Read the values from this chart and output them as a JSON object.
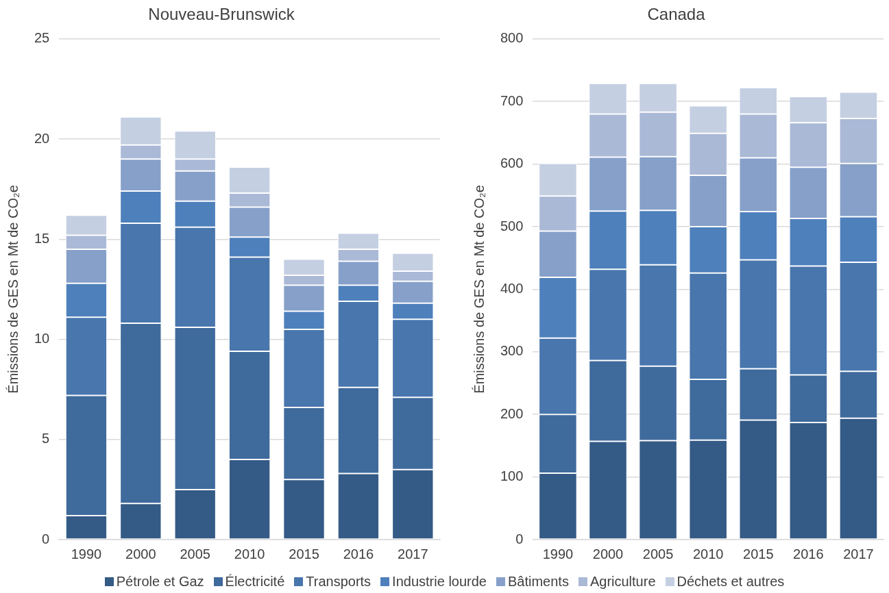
{
  "chart_data": [
    {
      "type": "bar",
      "title": "Nouveau-Brunswick",
      "ylabel": "Émissions de GES en Mt de CO₂e",
      "categories": [
        "1990",
        "2000",
        "2005",
        "2010",
        "2015",
        "2016",
        "2017"
      ],
      "stacked": true,
      "ylim": [
        0,
        25
      ],
      "yticks": [
        0,
        5,
        10,
        15,
        20,
        25
      ],
      "grid": "y",
      "series": [
        {
          "color": "#345a86",
          "values": [
            1.2,
            1.8,
            2.5,
            4.0,
            3.0,
            3.3,
            3.5
          ]
        },
        {
          "color": "#3f6a9c",
          "values": [
            6.0,
            9.0,
            8.1,
            5.4,
            3.6,
            4.3,
            3.6
          ]
        },
        {
          "color": "#4876ad",
          "values": [
            3.9,
            5.0,
            5.0,
            4.7,
            3.9,
            4.3,
            3.9
          ]
        },
        {
          "color": "#4e80bb",
          "values": [
            1.7,
            1.6,
            1.3,
            1.0,
            0.9,
            0.8,
            0.8
          ]
        },
        {
          "color": "#86a0c9",
          "values": [
            1.7,
            1.6,
            1.5,
            1.5,
            1.3,
            1.2,
            1.1
          ]
        },
        {
          "color": "#aab9d6",
          "values": [
            0.7,
            0.7,
            0.6,
            0.7,
            0.5,
            0.6,
            0.5
          ]
        },
        {
          "color": "#c4cfe2",
          "values": [
            1.0,
            1.4,
            1.4,
            1.3,
            0.8,
            0.8,
            0.9
          ]
        }
      ]
    },
    {
      "type": "bar",
      "title": "Canada",
      "ylabel": "Émissions de GES en Mt de CO₂e",
      "categories": [
        "1990",
        "2000",
        "2005",
        "2010",
        "2015",
        "2016",
        "2017"
      ],
      "stacked": true,
      "ylim": [
        0,
        800
      ],
      "yticks": [
        0,
        100,
        200,
        300,
        400,
        500,
        600,
        700,
        800
      ],
      "grid": "y",
      "legend": "bottom",
      "series": [
        {
          "name": "Pétrole et Gaz",
          "color": "#345a86",
          "values": [
            106,
            157,
            158,
            159,
            191,
            187,
            194
          ]
        },
        {
          "name": "Électricité",
          "color": "#3f6a9c",
          "values": [
            94,
            129,
            119,
            97,
            82,
            76,
            75
          ]
        },
        {
          "name": "Transports",
          "color": "#4876ad",
          "values": [
            122,
            146,
            162,
            170,
            174,
            174,
            174
          ]
        },
        {
          "name": "Industrie lourde",
          "color": "#4e80bb",
          "values": [
            97,
            93,
            87,
            74,
            77,
            76,
            73
          ]
        },
        {
          "name": "Bâtiments",
          "color": "#86a0c9",
          "values": [
            74,
            86,
            86,
            82,
            86,
            82,
            85
          ]
        },
        {
          "name": "Agriculture",
          "color": "#aab9d6",
          "values": [
            56,
            69,
            71,
            67,
            70,
            71,
            72
          ]
        },
        {
          "name": "Déchets et autres",
          "color": "#c4cfe2",
          "values": [
            52,
            49,
            46,
            44,
            42,
            42,
            42
          ]
        }
      ]
    }
  ]
}
